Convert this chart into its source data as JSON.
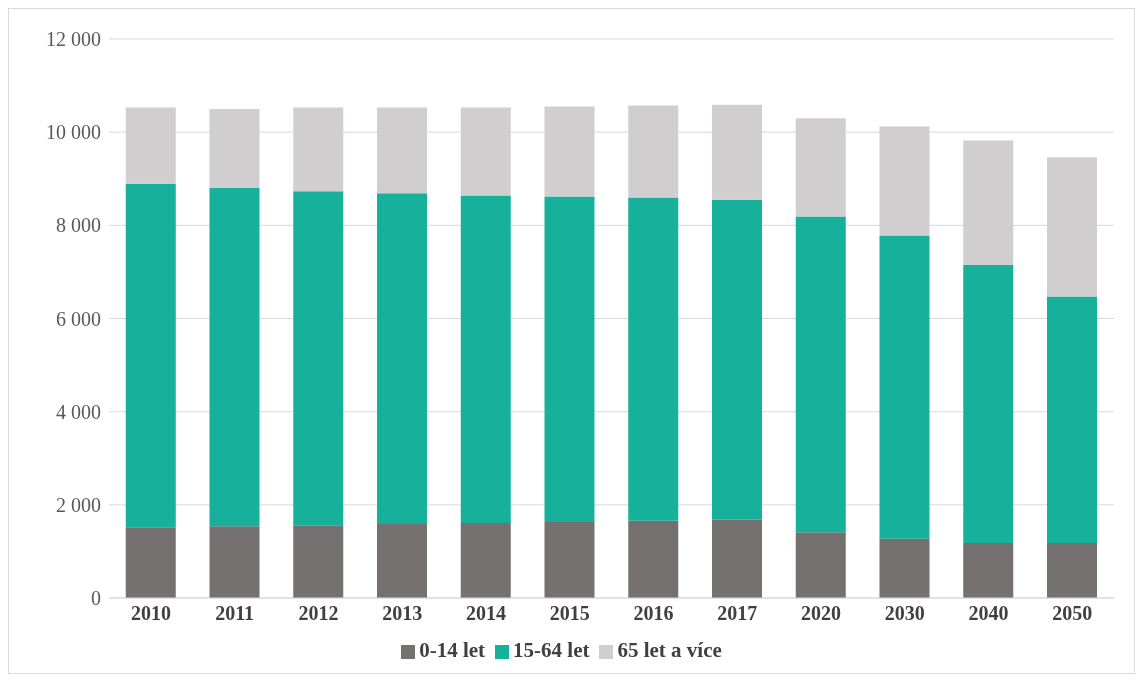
{
  "chart_data": {
    "type": "bar",
    "stacked": true,
    "categories": [
      "2010",
      "2011",
      "2012",
      "2013",
      "2014",
      "2015",
      "2016",
      "2017",
      "2020",
      "2030",
      "2040",
      "2050"
    ],
    "series": [
      {
        "name": "0-14 let",
        "color": "#767171",
        "values": [
          1520,
          1540,
          1560,
          1590,
          1610,
          1630,
          1660,
          1680,
          1410,
          1270,
          1180,
          1180
        ]
      },
      {
        "name": "15-64 let",
        "color": "#17b09b",
        "values": [
          7370,
          7260,
          7170,
          7100,
          7030,
          6990,
          6940,
          6870,
          6780,
          6510,
          5970,
          5290
        ]
      },
      {
        "name": "65 let a více",
        "color": "#d0cece",
        "values": [
          1640,
          1700,
          1800,
          1840,
          1890,
          1930,
          1970,
          2040,
          2110,
          2340,
          2670,
          2990
        ]
      }
    ],
    "ylim": [
      0,
      12000
    ],
    "yticks": [
      {
        "value": 0,
        "label": "0"
      },
      {
        "value": 2000,
        "label": "2 000"
      },
      {
        "value": 4000,
        "label": "4 000"
      },
      {
        "value": 6000,
        "label": "6 000"
      },
      {
        "value": 8000,
        "label": "8 000"
      },
      {
        "value": 10000,
        "label": "10 000"
      },
      {
        "value": 12000,
        "label": "12 000"
      }
    ],
    "grid": "y",
    "legend": "bottom"
  }
}
